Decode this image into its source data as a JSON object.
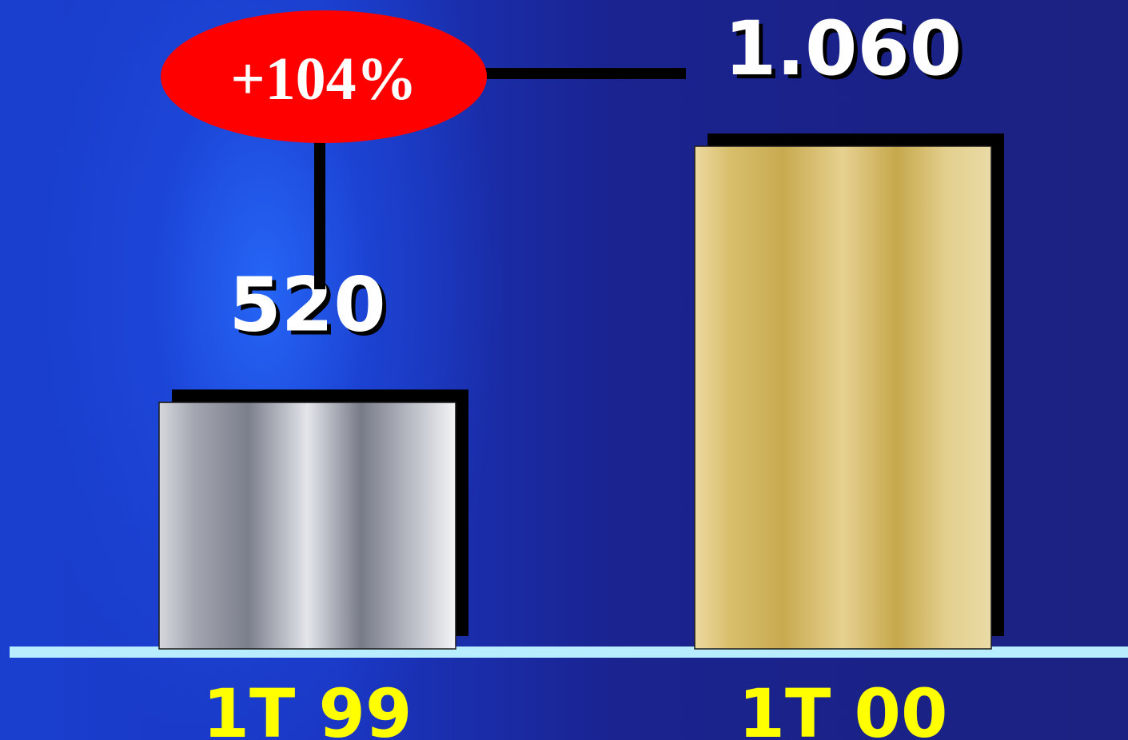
{
  "chart_data": {
    "type": "bar",
    "categories": [
      "1T 99",
      "1T 00"
    ],
    "values": [
      520,
      1060
    ],
    "value_labels": [
      "520",
      "1.060"
    ],
    "ylim": [
      0,
      1060
    ],
    "grid": false,
    "annotation": {
      "text": "+104%"
    },
    "colors": {
      "bar_1": "#9aa0b0",
      "bar_2": "#d8bf66",
      "category_label": "#ffff00",
      "value_label": "#ffffff",
      "baseline": "#b8ecff",
      "badge": "#ff0000"
    }
  }
}
